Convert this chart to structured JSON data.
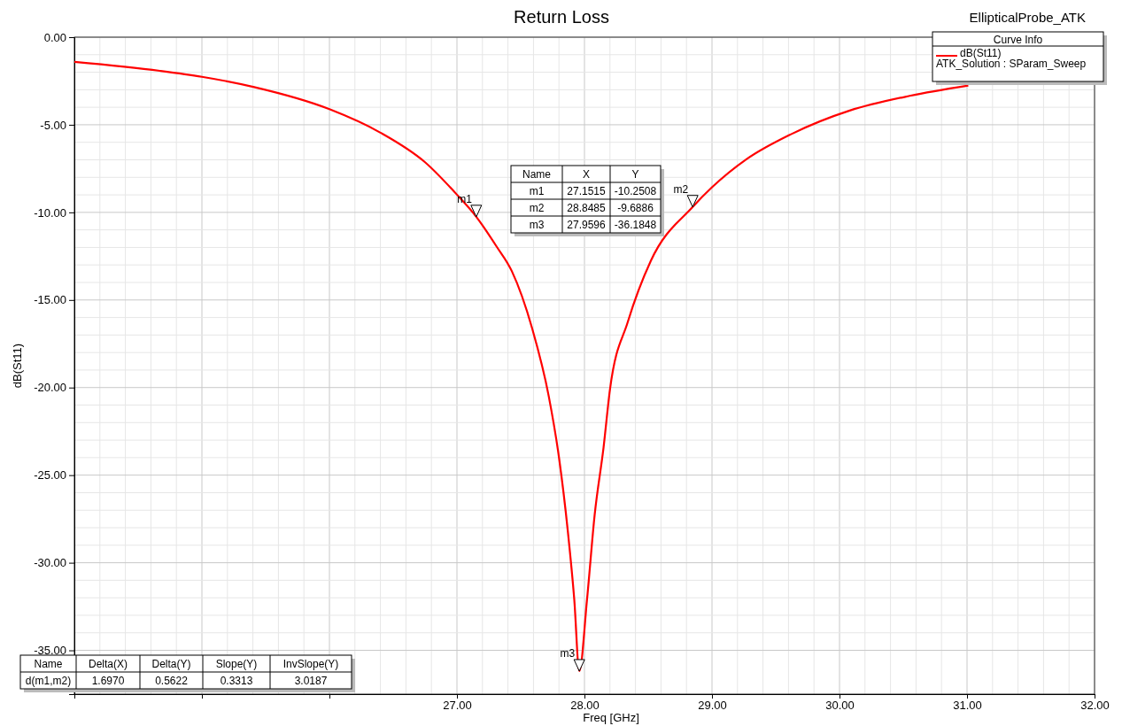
{
  "chart_data": {
    "type": "line",
    "title": "Return Loss",
    "xlabel": "Freq [GHz]",
    "ylabel": "dB(St11)",
    "legend_title": "Curve Info",
    "legend": "top right",
    "grid": true,
    "line_style": "solid",
    "marker": "none",
    "xlim": [
      24,
      32
    ],
    "ylim": [
      -37.5,
      0
    ],
    "xticks": [
      {
        "value": 24,
        "label": null
      },
      {
        "value": 25,
        "label": null
      },
      {
        "value": 26,
        "label": null
      },
      {
        "value": 27,
        "label": "27.00"
      },
      {
        "value": 28,
        "label": "28.00"
      },
      {
        "value": 29,
        "label": "29.00"
      },
      {
        "value": 30,
        "label": "30.00"
      },
      {
        "value": 31,
        "label": "31.00"
      },
      {
        "value": 32,
        "label": "32.00"
      }
    ],
    "yticks": [
      {
        "value": 0,
        "label": "0.00"
      },
      {
        "value": -5,
        "label": "-5.00"
      },
      {
        "value": -10,
        "label": "-10.00"
      },
      {
        "value": -15,
        "label": "-15.00"
      },
      {
        "value": -20,
        "label": "-20.00"
      },
      {
        "value": -25,
        "label": "-25.00"
      },
      {
        "value": -30,
        "label": "-30.00"
      },
      {
        "value": -35,
        "label": "-35.00"
      }
    ],
    "series": [
      {
        "name": "dB(St11)",
        "color": "#ff0000",
        "x": [
          24,
          24.67,
          25,
          25.41,
          26,
          26.4,
          26.75,
          27,
          27.1515,
          27.31,
          27.43,
          27.59,
          27.72,
          27.8,
          27.87,
          27.92,
          27.9596,
          28.02,
          28.08,
          28.15,
          28.2,
          28.34,
          28.52,
          28.8485,
          29,
          29.27,
          29.62,
          30.08,
          30.55,
          31.01
        ],
        "values": [
          -1.41,
          -1.92,
          -2.26,
          -2.85,
          -4.11,
          -5.45,
          -7.14,
          -8.99,
          -10.2508,
          -11.94,
          -13.35,
          -16.63,
          -20.5,
          -23.98,
          -28.23,
          -32.1,
          -36.1848,
          -32.1,
          -27.26,
          -23.4,
          -20.11,
          -16.25,
          -12.77,
          -9.6886,
          -8.57,
          -6.97,
          -5.54,
          -4.19,
          -3.35,
          -2.76
        ]
      }
    ],
    "annotations": [
      "EllipticalProbe_ATK",
      "ATK_Solution : SParam_Sweep",
      "Name",
      "X",
      "Y",
      "m1",
      "27.1515",
      "-10.2508",
      "m2",
      "28.8485",
      "-9.6886",
      "m3",
      "27.9596",
      "-36.1848",
      "Name",
      "Delta(X)",
      "Delta(Y)",
      "Slope(Y)",
      "InvSlope(Y)",
      "d(m1,m2)",
      "1.6970",
      "0.5622",
      "0.3313",
      "3.0187",
      {
        "text": "m1",
        "x": 27.1515,
        "y": -10.2508
      },
      {
        "text": "m2",
        "x": 28.8485,
        "y": -9.6886
      },
      {
        "text": "m3",
        "x": 27.9596,
        "y": -36.1848
      }
    ]
  }
}
